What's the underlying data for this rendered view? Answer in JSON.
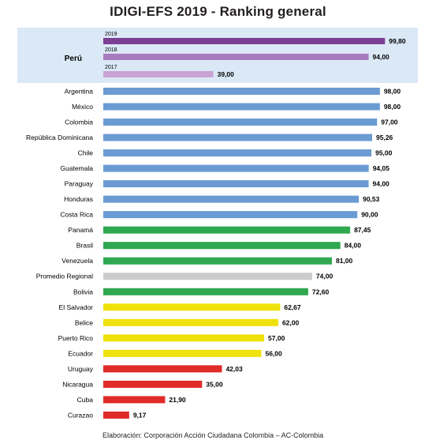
{
  "title": "IDIGI-EFS 2019 - Ranking general",
  "credit": "Elaboración: Corporación Acción Ciudadana Colombia – AC-Colombia",
  "colors": {
    "highlight_background": "#dbe8f6",
    "peru_2019": "#7c3f96",
    "peru_2018": "#a87bbf",
    "peru_2017": "#c9a3d3",
    "blue": "#6b9bd3",
    "green": "#2fa84f",
    "grey": "#cccccc",
    "yellow": "#efe10a",
    "red": "#e02b27"
  },
  "chart_data": {
    "type": "bar",
    "orientation": "horizontal",
    "title": "IDIGI-EFS 2019 - Ranking general",
    "xlim": [
      0,
      100
    ],
    "highlight": {
      "category": "Perú",
      "series": [
        {
          "name": "2019",
          "value": 99.8,
          "label": "99,80",
          "color": "#7c3f96"
        },
        {
          "name": "2018",
          "value": 94.0,
          "label": "94,00",
          "color": "#a87bbf"
        },
        {
          "name": "2017",
          "value": 39.0,
          "label": "39,00",
          "color": "#c9a3d3"
        }
      ]
    },
    "categories": [
      "Argentina",
      "México",
      "Colombia",
      "República Dominicana",
      "Chile",
      "Guatemala",
      "Paraguay",
      "Honduras",
      "Costa Rica",
      "Panamá",
      "Brasil",
      "Venezuela",
      "Promedio Regional",
      "Bolivia",
      "El Salvador",
      "Belice",
      "Puerto Rico",
      "Ecuador",
      "Uruguay",
      "Nicaragua",
      "Cuba",
      "Curazao"
    ],
    "values": [
      98.0,
      98.0,
      97.0,
      95.26,
      95.0,
      94.05,
      94.0,
      90.53,
      90.0,
      87.45,
      84.0,
      81.0,
      74.0,
      72.6,
      62.67,
      62.0,
      57.0,
      56.0,
      42.03,
      35.0,
      21.9,
      9.17
    ],
    "value_labels": [
      "98,00",
      "98,00",
      "97,00",
      "95,26",
      "95,00",
      "94,05",
      "94,00",
      "90,53",
      "90,00",
      "87,45",
      "84,00",
      "81,00",
      "74,00",
      "72,60",
      "62,67",
      "62,00",
      "57,00",
      "56,00",
      "42,03",
      "35,00",
      "21,90",
      "9,17"
    ],
    "bar_colors": [
      "#6b9bd3",
      "#6b9bd3",
      "#6b9bd3",
      "#6b9bd3",
      "#6b9bd3",
      "#6b9bd3",
      "#6b9bd3",
      "#6b9bd3",
      "#6b9bd3",
      "#2fa84f",
      "#2fa84f",
      "#2fa84f",
      "#cccccc",
      "#2fa84f",
      "#efe10a",
      "#efe10a",
      "#efe10a",
      "#efe10a",
      "#e02b27",
      "#e02b27",
      "#e02b27",
      "#e02b27"
    ]
  }
}
